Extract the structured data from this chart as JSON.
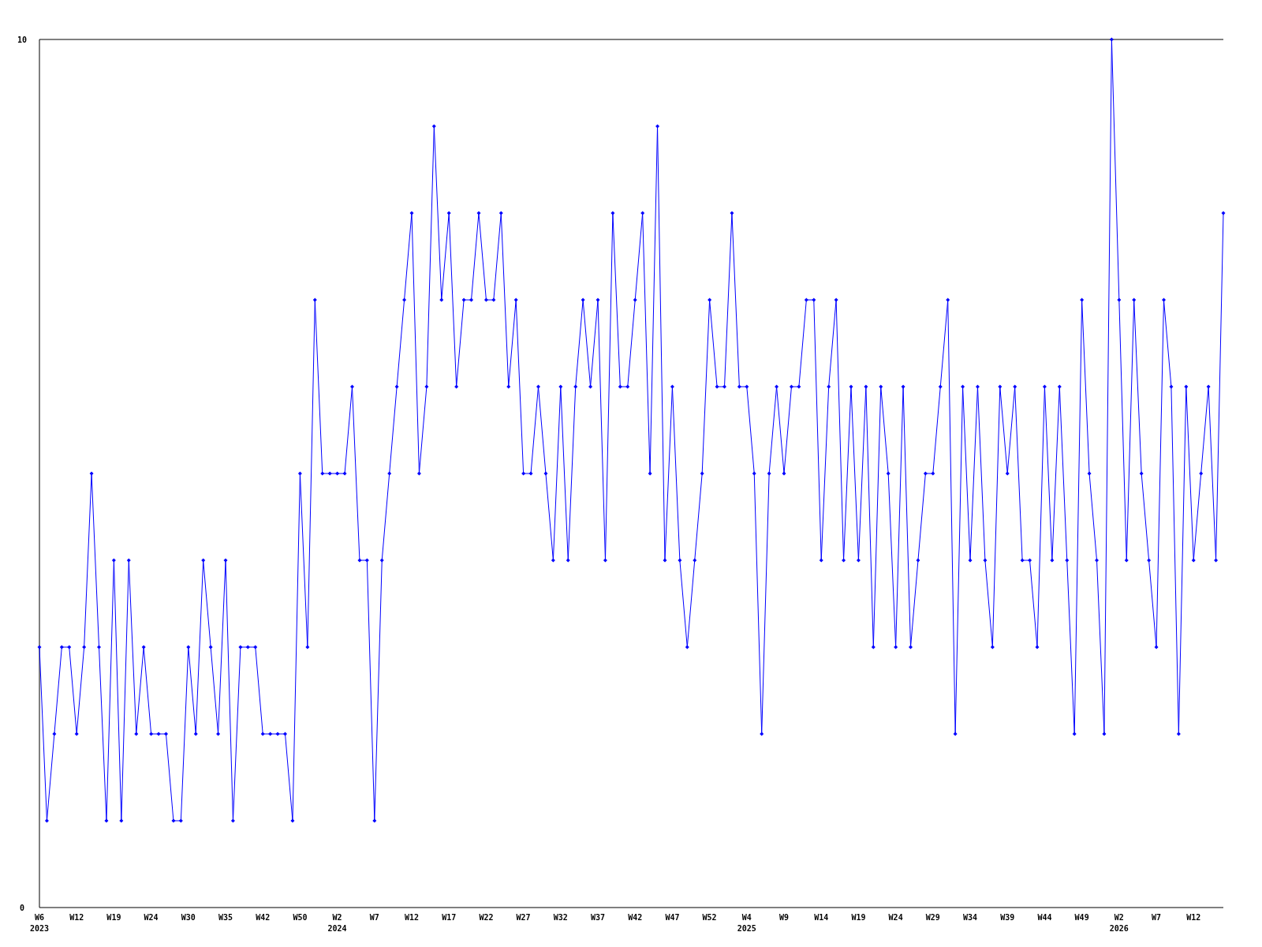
{
  "chart_data": {
    "type": "line",
    "categories": [
      "W6 2023",
      null,
      null,
      null,
      null,
      "W12",
      null,
      null,
      null,
      null,
      "W19",
      null,
      null,
      null,
      null,
      "W24",
      null,
      null,
      null,
      null,
      "W30",
      null,
      null,
      null,
      null,
      "W35",
      null,
      null,
      null,
      null,
      "W42",
      null,
      null,
      null,
      null,
      "W50",
      null,
      null,
      null,
      null,
      "W2 2024",
      null,
      null,
      null,
      null,
      "W7",
      null,
      null,
      null,
      null,
      "W12",
      null,
      null,
      null,
      null,
      "W17",
      null,
      null,
      null,
      null,
      "W22",
      null,
      null,
      null,
      null,
      "W27",
      null,
      null,
      null,
      null,
      "W32",
      null,
      null,
      null,
      null,
      "W37",
      null,
      null,
      null,
      null,
      "W42",
      null,
      null,
      null,
      null,
      "W47",
      null,
      null,
      null,
      null,
      "W52",
      null,
      null,
      null,
      null,
      "W4 2025",
      null,
      null,
      null,
      null,
      "W9",
      null,
      null,
      null,
      null,
      "W14",
      null,
      null,
      null,
      null,
      "W19",
      null,
      null,
      null,
      null,
      "W24",
      null,
      null,
      null,
      null,
      "W29",
      null,
      null,
      null,
      null,
      "W34",
      null,
      null,
      null,
      null,
      "W39",
      null,
      null,
      null,
      null,
      "W44",
      null,
      null,
      null,
      null,
      "W49",
      null,
      null,
      null,
      null,
      "W2 2026",
      null,
      null,
      null,
      null,
      "W7",
      null,
      null,
      null,
      null,
      "W12",
      null,
      null,
      null,
      null
    ],
    "series": [
      {
        "color": "#0000ff",
        "values": [
          3,
          1,
          2,
          3,
          3,
          2,
          3,
          5,
          3,
          1,
          4,
          1,
          4,
          2,
          3,
          2,
          2,
          2,
          1,
          1,
          3,
          2,
          4,
          3,
          2,
          4,
          1,
          3,
          3,
          3,
          2,
          2,
          2,
          2,
          1,
          5,
          3,
          7,
          5,
          5,
          5,
          5,
          6,
          4,
          4,
          1,
          4,
          5,
          6,
          7,
          8,
          5,
          6,
          9,
          7,
          8,
          6,
          7,
          7,
          8,
          7,
          7,
          8,
          6,
          7,
          5,
          5,
          6,
          5,
          4,
          6,
          4,
          6,
          7,
          6,
          7,
          4,
          8,
          6,
          6,
          7,
          8,
          5,
          9,
          4,
          6,
          4,
          3,
          4,
          5,
          7,
          6,
          6,
          8,
          6,
          6,
          5,
          2,
          5,
          6,
          5,
          6,
          6,
          7,
          7,
          4,
          6,
          7,
          4,
          6,
          4,
          6,
          3,
          6,
          5,
          3,
          6,
          3,
          4,
          5,
          5,
          6,
          7,
          2,
          6,
          4,
          6,
          4,
          3,
          6,
          5,
          6,
          4,
          4,
          3,
          6,
          4,
          6,
          4,
          2,
          7,
          5,
          4,
          2,
          10,
          7,
          4,
          7,
          5,
          4,
          3,
          7,
          6,
          2,
          6,
          4,
          5,
          6,
          4,
          8
        ]
      }
    ],
    "ylim": [
      0,
      10
    ],
    "yticks": [
      0,
      10
    ],
    "grid": false,
    "marker": "diamond",
    "line_style": "solid"
  }
}
